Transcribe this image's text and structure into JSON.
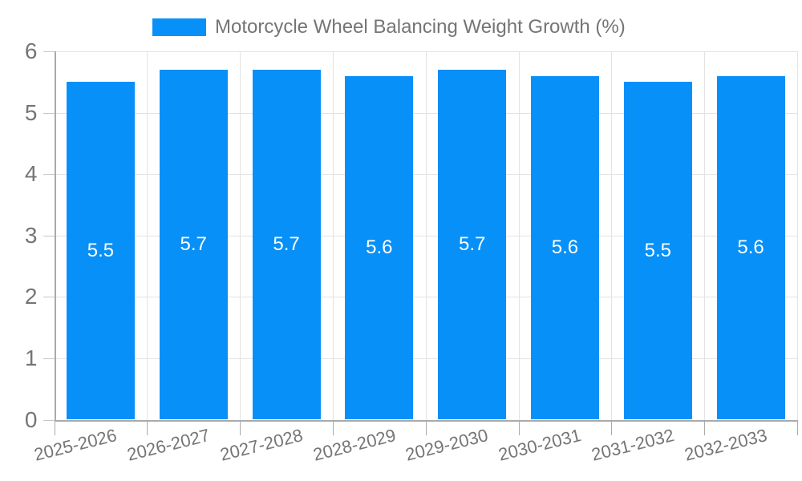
{
  "chart_data": {
    "type": "bar",
    "title": "Motorcycle Wheel Balancing Weight Growth (%)",
    "categories": [
      "2025-2026",
      "2026-2027",
      "2027-2028",
      "2028-2029",
      "2029-2030",
      "2030-2031",
      "2031-2032",
      "2032-2033"
    ],
    "series": [
      {
        "name": "Motorcycle Wheel Balancing Weight Growth (%)",
        "values": [
          5.5,
          5.7,
          5.7,
          5.6,
          5.7,
          5.6,
          5.5,
          5.6
        ]
      }
    ],
    "bar_value_labels": [
      "5.5",
      "5.7",
      "5.7",
      "5.6",
      "5.7",
      "5.6",
      "5.5",
      "5.6"
    ],
    "xlabel": "",
    "ylabel": "",
    "ylim": [
      0,
      6
    ],
    "yticks": [
      "0",
      "1",
      "2",
      "3",
      "4",
      "5",
      "6"
    ],
    "grid": true,
    "legend_position": "top",
    "colors": {
      "bar": "#0790F8",
      "text": "#757575",
      "grid": "#E3E3E3",
      "axis": "#AAAAAA",
      "tick": "#C7C7C7",
      "value_label": "#FFFFFF"
    }
  }
}
